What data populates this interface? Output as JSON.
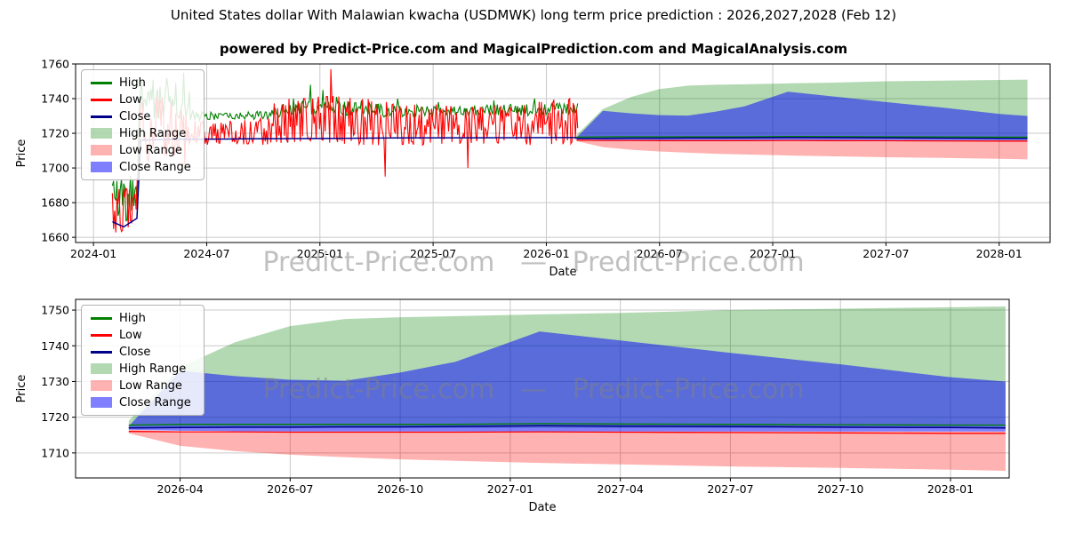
{
  "page": {
    "watermark": "Predict-Price.com   —   Predict-Price.com"
  },
  "colors": {
    "high": "#008000",
    "low": "#ff0000",
    "close": "#00008b",
    "high_range": "rgba(0,128,0,0.30)",
    "low_range": "rgba(255,0,0,0.30)",
    "close_range": "rgba(0,0,255,0.50)",
    "grid": "#c9c9c9",
    "axis": "#000000"
  },
  "legend": {
    "items": [
      {
        "label": "High",
        "swatch": "line",
        "color": "#008000"
      },
      {
        "label": "Low",
        "swatch": "line",
        "color": "#ff0000"
      },
      {
        "label": "Close",
        "swatch": "line",
        "color": "#00008b"
      },
      {
        "label": "High Range",
        "swatch": "patch",
        "color": "rgba(0,128,0,0.30)"
      },
      {
        "label": "Low Range",
        "swatch": "patch",
        "color": "rgba(255,0,0,0.30)"
      },
      {
        "label": "Close Range",
        "swatch": "patch",
        "color": "rgba(0,0,255,0.50)"
      }
    ]
  },
  "chart_data": [
    {
      "type": "line",
      "title": "United States dollar With Malawian kwacha (USDMWK) long term price prediction : 2026,2027,2028 (Feb 12)",
      "subtitle": "powered by Predict-Price.com and MagicalPrediction.com and MagicalAnalysis.com",
      "xlabel": "Date",
      "ylabel": "Price",
      "x_unit": "months since 2024-01",
      "xlim": [
        -0.95,
        50.7
      ],
      "ylim": [
        1657,
        1760
      ],
      "yticks": [
        1660,
        1680,
        1700,
        1720,
        1740,
        1760
      ],
      "xticks": [
        {
          "m": 0,
          "label": "2024-01"
        },
        {
          "m": 6,
          "label": "2024-07"
        },
        {
          "m": 12,
          "label": "2025-01"
        },
        {
          "m": 18,
          "label": "2025-07"
        },
        {
          "m": 24,
          "label": "2026-01"
        },
        {
          "m": 30,
          "label": "2026-07"
        },
        {
          "m": 36,
          "label": "2027-01"
        },
        {
          "m": 42,
          "label": "2027-07"
        },
        {
          "m": 48,
          "label": "2028-01"
        }
      ],
      "grid": true,
      "legend": {
        "position": "upper left",
        "entries": [
          "High",
          "Low",
          "Close",
          "High Range",
          "Low Range",
          "Close Range"
        ]
      },
      "historical": {
        "x_start": 1.0,
        "x_end": 25.7,
        "x_step": 0.06,
        "low_band": [
          [
            1.0,
            1663,
            1688
          ],
          [
            1.6,
            1662,
            1690
          ],
          [
            2.3,
            1664,
            1692
          ],
          [
            2.45,
            1704,
            1738
          ],
          [
            3.2,
            1703,
            1742
          ],
          [
            4.2,
            1705,
            1740
          ],
          [
            5.2,
            1713,
            1728
          ],
          [
            7.0,
            1714,
            1727
          ],
          [
            9.3,
            1713,
            1729
          ],
          [
            9.5,
            1714,
            1740
          ],
          [
            11,
            1714,
            1741
          ],
          [
            13,
            1714,
            1742
          ],
          [
            15,
            1713,
            1740
          ],
          [
            17,
            1713,
            1738
          ],
          [
            19,
            1714,
            1737
          ],
          [
            21,
            1714,
            1736
          ],
          [
            23,
            1713,
            1738
          ],
          [
            25.7,
            1714,
            1741
          ]
        ],
        "high_band": [
          [
            1.0,
            1668,
            1696
          ],
          [
            2.3,
            1670,
            1698
          ],
          [
            2.45,
            1727,
            1745
          ],
          [
            4.0,
            1728,
            1748
          ],
          [
            5.2,
            1727,
            1733
          ],
          [
            7,
            1728,
            1732
          ],
          [
            9.3,
            1728,
            1733
          ],
          [
            9.5,
            1729,
            1737
          ],
          [
            12,
            1730,
            1740
          ],
          [
            14,
            1730,
            1738
          ],
          [
            16,
            1729,
            1737
          ],
          [
            18,
            1730,
            1736
          ],
          [
            20,
            1730,
            1736
          ],
          [
            22,
            1730,
            1737
          ],
          [
            24,
            1730,
            1737
          ],
          [
            25.7,
            1730,
            1738
          ]
        ],
        "close": [
          [
            1.0,
            1669
          ],
          [
            1.6,
            1666
          ],
          [
            2.3,
            1671
          ],
          [
            2.5,
            1716
          ],
          [
            4,
            1716.5
          ],
          [
            8,
            1716.8
          ],
          [
            12,
            1717
          ],
          [
            16,
            1717.3
          ],
          [
            20,
            1717.4
          ],
          [
            25.7,
            1717.5
          ]
        ],
        "low_spikes": [
          [
            4.86,
            1701
          ],
          [
            12.6,
            1757
          ],
          [
            15.45,
            1695
          ],
          [
            19.85,
            1700
          ]
        ],
        "high_spikes": [
          [
            2.55,
            1750
          ],
          [
            2.9,
            1744
          ],
          [
            3.15,
            1751
          ],
          [
            3.5,
            1747
          ],
          [
            3.9,
            1752
          ],
          [
            4.35,
            1749
          ],
          [
            4.75,
            1755
          ],
          [
            5.05,
            1744
          ],
          [
            10.6,
            1740
          ],
          [
            11.5,
            1748
          ],
          [
            12.15,
            1745
          ],
          [
            12.9,
            1741
          ],
          [
            14.2,
            1739
          ],
          [
            16.1,
            1740
          ],
          [
            18.3,
            1738
          ],
          [
            21.2,
            1739
          ],
          [
            23.4,
            1740
          ]
        ]
      },
      "forecast": {
        "x": [
          25.6,
          27,
          28.5,
          30,
          31.5,
          33,
          34.5,
          36.8,
          39,
          42,
          45,
          48,
          49.5
        ],
        "high_top": [
          1719,
          1734,
          1741,
          1745.5,
          1747.5,
          1748,
          1748.3,
          1748.8,
          1749.2,
          1750,
          1750.4,
          1750.8,
          1751
        ],
        "high_bottom": [
          1717.2,
          1717,
          1717,
          1717,
          1717,
          1717,
          1717,
          1717,
          1717,
          1717,
          1717,
          1717,
          1717
        ],
        "close_top": [
          1717.5,
          1733,
          1731.5,
          1730.5,
          1730.2,
          1732.5,
          1735.5,
          1744,
          1741.5,
          1738,
          1734.8,
          1731.2,
          1730
        ],
        "close_bottom": [
          1716.5,
          1716.2,
          1716.1,
          1716,
          1716,
          1716,
          1716,
          1716,
          1716,
          1716,
          1716,
          1716,
          1716
        ],
        "low_top": [
          1716.5,
          1716,
          1716,
          1716,
          1716,
          1716,
          1716,
          1716,
          1716,
          1716,
          1716,
          1716,
          1716
        ],
        "low_bottom": [
          1715.5,
          1712,
          1710.5,
          1709.5,
          1708.8,
          1708.2,
          1707.8,
          1707.2,
          1706.8,
          1706.2,
          1705.8,
          1705.3,
          1705
        ],
        "high_line": [
          1717.8,
          1718,
          1718,
          1718,
          1718,
          1718,
          1718,
          1718.2,
          1718.1,
          1718,
          1717.9,
          1717.8,
          1717.8
        ],
        "low_line": [
          1716,
          1715.9,
          1715.9,
          1715.8,
          1715.8,
          1715.8,
          1715.8,
          1715.9,
          1715.8,
          1715.7,
          1715.6,
          1715.5,
          1715.5
        ],
        "close_line": [
          1717,
          1717.1,
          1717.2,
          1717.2,
          1717.3,
          1717.3,
          1717.4,
          1717.6,
          1717.5,
          1717.4,
          1717.2,
          1717.1,
          1717
        ]
      }
    },
    {
      "type": "line",
      "title": "",
      "xlabel": "Date",
      "ylabel": "Price",
      "x_unit": "months since 2024-01",
      "xlim": [
        24.15,
        49.6
      ],
      "ylim": [
        1703,
        1753
      ],
      "yticks": [
        1710,
        1720,
        1730,
        1740,
        1750
      ],
      "xticks": [
        {
          "m": 27,
          "label": "2026-04"
        },
        {
          "m": 30,
          "label": "2026-07"
        },
        {
          "m": 33,
          "label": "2026-10"
        },
        {
          "m": 36,
          "label": "2027-01"
        },
        {
          "m": 39,
          "label": "2027-04"
        },
        {
          "m": 42,
          "label": "2027-07"
        },
        {
          "m": 45,
          "label": "2027-10"
        },
        {
          "m": 48,
          "label": "2028-01"
        }
      ],
      "grid": true,
      "legend": {
        "position": "upper left",
        "entries": [
          "High",
          "Low",
          "Close",
          "High Range",
          "Low Range",
          "Close Range"
        ]
      },
      "forecast": {
        "x": [
          25.6,
          27,
          28.5,
          30,
          31.5,
          33,
          34.5,
          36.8,
          39,
          42,
          45,
          48,
          49.5
        ],
        "high_top": [
          1719,
          1734,
          1741,
          1745.5,
          1747.5,
          1748,
          1748.3,
          1748.8,
          1749.2,
          1750,
          1750.4,
          1750.8,
          1751
        ],
        "high_bottom": [
          1717.2,
          1717,
          1717,
          1717,
          1717,
          1717,
          1717,
          1717,
          1717,
          1717,
          1717,
          1717,
          1717
        ],
        "close_top": [
          1717.5,
          1733,
          1731.5,
          1730.5,
          1730.2,
          1732.5,
          1735.5,
          1744,
          1741.5,
          1738,
          1734.8,
          1731.2,
          1730
        ],
        "close_bottom": [
          1716.5,
          1716.2,
          1716.1,
          1716,
          1716,
          1716,
          1716,
          1716,
          1716,
          1716,
          1716,
          1716,
          1716
        ],
        "low_top": [
          1716.5,
          1716,
          1716,
          1716,
          1716,
          1716,
          1716,
          1716,
          1716,
          1716,
          1716,
          1716,
          1716
        ],
        "low_bottom": [
          1715.5,
          1712,
          1710.5,
          1709.5,
          1708.8,
          1708.2,
          1707.8,
          1707.2,
          1706.8,
          1706.2,
          1705.8,
          1705.3,
          1705
        ],
        "high_line": [
          1717.8,
          1718,
          1718,
          1718,
          1718,
          1718,
          1718,
          1718.2,
          1718.1,
          1718,
          1717.9,
          1717.8,
          1717.8
        ],
        "low_line": [
          1716,
          1715.9,
          1715.9,
          1715.8,
          1715.8,
          1715.8,
          1715.8,
          1715.9,
          1715.8,
          1715.7,
          1715.6,
          1715.5,
          1715.5
        ],
        "close_line": [
          1717,
          1717.1,
          1717.2,
          1717.2,
          1717.3,
          1717.3,
          1717.4,
          1717.6,
          1717.5,
          1717.4,
          1717.2,
          1717.1,
          1717
        ]
      }
    }
  ]
}
